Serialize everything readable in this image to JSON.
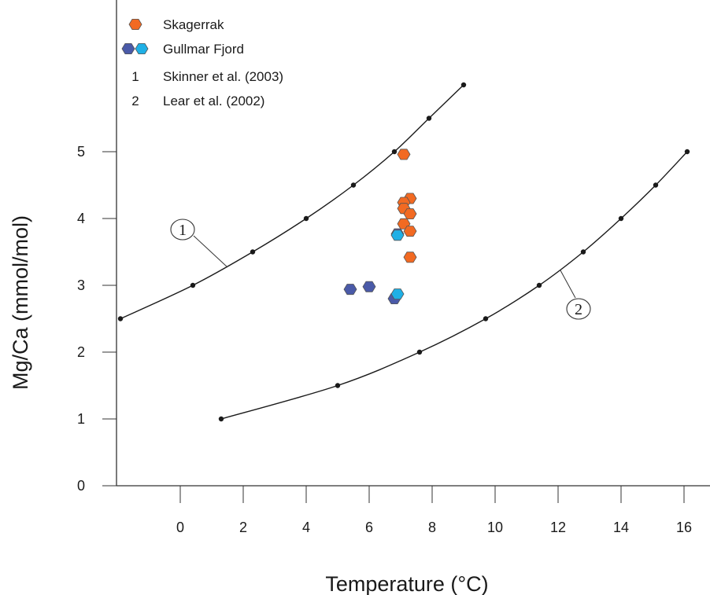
{
  "chart_data": {
    "type": "scatter",
    "xlabel": "Temperature (°C)",
    "ylabel": "Mg/Ca (mmol/mol)",
    "xlim": [
      -2,
      17
    ],
    "ylim": [
      0,
      7
    ],
    "xticks": [
      0,
      2,
      4,
      6,
      8,
      10,
      12,
      14,
      16
    ],
    "yticks": [
      0,
      1,
      2,
      3,
      4,
      5
    ],
    "grid": false,
    "legend_position": "top-left",
    "series": [
      {
        "name": "Skagerrak",
        "kind": "points",
        "marker": "hexagon",
        "color": "#f26a22",
        "points": [
          [
            7.1,
            4.96
          ],
          [
            7.3,
            4.3
          ],
          [
            7.1,
            4.24
          ],
          [
            7.1,
            4.15
          ],
          [
            7.3,
            4.07
          ],
          [
            7.1,
            3.92
          ],
          [
            7.3,
            3.81
          ],
          [
            7.3,
            3.42
          ]
        ]
      },
      {
        "name": "Gullmar Fjord",
        "kind": "points",
        "marker": "hexagon",
        "colors": [
          "#4a5aa8",
          "#1fb0e6"
        ],
        "points": [
          {
            "x": 6.9,
            "y": 3.77,
            "color": "#4a5aa8"
          },
          {
            "x": 6.9,
            "y": 3.75,
            "color": "#1fb0e6"
          },
          {
            "x": 5.4,
            "y": 2.94,
            "color": "#4a5aa8"
          },
          {
            "x": 6.0,
            "y": 2.98,
            "color": "#4a5aa8"
          },
          {
            "x": 6.8,
            "y": 2.8,
            "color": "#4a5aa8"
          },
          {
            "x": 6.9,
            "y": 2.87,
            "color": "#1fb0e6"
          }
        ]
      },
      {
        "name": "Skinner et al. (2003)",
        "kind": "curve",
        "legend_symbol": "1",
        "label": "1",
        "color": "#1a1a1a",
        "points": [
          [
            -1.9,
            2.5
          ],
          [
            0.4,
            3.0
          ],
          [
            2.3,
            3.5
          ],
          [
            4.0,
            4.0
          ],
          [
            5.5,
            4.5
          ],
          [
            6.8,
            5.0
          ],
          [
            7.9,
            5.5
          ],
          [
            9.0,
            6.0
          ]
        ]
      },
      {
        "name": "Lear et al. (2002)",
        "kind": "curve",
        "legend_symbol": "2",
        "label": "2",
        "color": "#1a1a1a",
        "points": [
          [
            1.3,
            1.0
          ],
          [
            5.0,
            1.5
          ],
          [
            7.6,
            2.0
          ],
          [
            9.7,
            2.5
          ],
          [
            11.4,
            3.0
          ],
          [
            12.8,
            3.5
          ],
          [
            14.0,
            4.0
          ],
          [
            15.1,
            4.5
          ],
          [
            16.1,
            5.0
          ]
        ]
      }
    ]
  }
}
